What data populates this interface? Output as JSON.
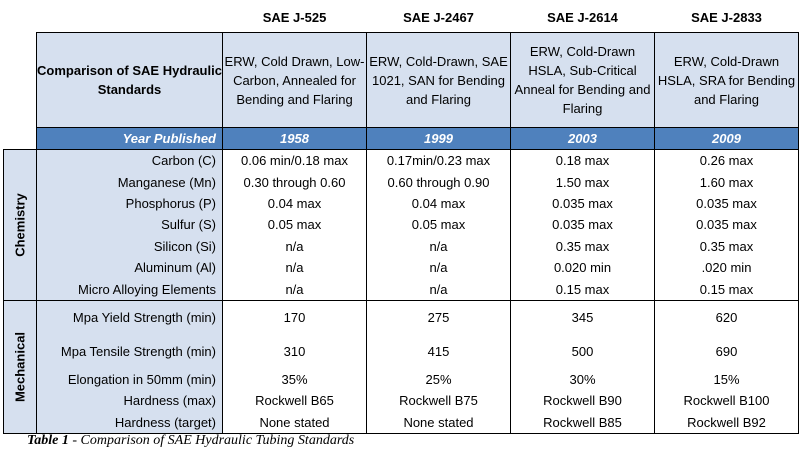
{
  "standards": [
    "SAE J-525",
    "SAE J-2467",
    "SAE J-2614",
    "SAE J-2833"
  ],
  "comparison_title": "Comparison of SAE Hydraulic Standards",
  "descriptions": [
    "ERW, Cold Drawn, Low-Carbon, Annealed for Bending and Flaring",
    "ERW, Cold-Drawn, SAE 1021, SAN for Bending and Flaring",
    "ERW, Cold-Drawn HSLA, Sub-Critical Anneal for Bending and Flaring",
    "ERW, Cold-Drawn HSLA, SRA for Bending and Flaring"
  ],
  "year_label": "Year Published",
  "years": [
    "1958",
    "1999",
    "2003",
    "2009"
  ],
  "chemistry": {
    "label": "Chemistry",
    "rows": [
      {
        "property": "Carbon (C)",
        "values": [
          "0.06 min/0.18 max",
          "0.17min/0.23 max",
          "0.18 max",
          "0.26 max"
        ]
      },
      {
        "property": "Manganese (Mn)",
        "values": [
          "0.30 through 0.60",
          "0.60 through 0.90",
          "1.50 max",
          "1.60 max"
        ]
      },
      {
        "property": "Phosphorus (P)",
        "values": [
          "0.04 max",
          "0.04 max",
          "0.035 max",
          "0.035 max"
        ]
      },
      {
        "property": "Sulfur (S)",
        "values": [
          "0.05 max",
          "0.05 max",
          "0.035 max",
          "0.035 max"
        ]
      },
      {
        "property": "Silicon (Si)",
        "values": [
          "n/a",
          "n/a",
          "0.35 max",
          "0.35 max"
        ]
      },
      {
        "property": "Aluminum (Al)",
        "values": [
          "n/a",
          "n/a",
          "0.020 min",
          ".020 min"
        ]
      },
      {
        "property": "Micro Alloying Elements",
        "values": [
          "n/a",
          "n/a",
          "0.15 max",
          "0.15 max"
        ]
      }
    ]
  },
  "mechanical": {
    "label": "Mechanical",
    "rows": [
      {
        "property": "Mpa Yield Strength (min)",
        "values": [
          "170",
          "275",
          "345",
          "620"
        ]
      },
      {
        "property": "Mpa Tensile Strength (min)",
        "values": [
          "310",
          "415",
          "500",
          "690"
        ]
      },
      {
        "property": "Elongation in 50mm (min)",
        "values": [
          "35%",
          "25%",
          "30%",
          "15%"
        ]
      },
      {
        "property": "Hardness (max)",
        "values": [
          "Rockwell B65",
          "Rockwell B75",
          "Rockwell B90",
          "Rockwell B100"
        ]
      },
      {
        "property": "Hardness (target)",
        "values": [
          "None stated",
          "None stated",
          "Rockwell B85",
          "Rockwell B92"
        ]
      }
    ]
  },
  "caption": {
    "prefix": "Table 1",
    "text": " - Comparison of SAE Hydraulic Tubing Standards"
  }
}
